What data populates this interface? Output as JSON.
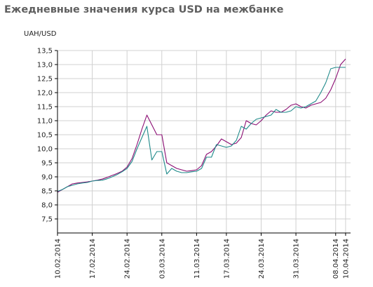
{
  "chart_data": {
    "type": "line",
    "title": "Ежедневные значения курса USD на межбанке",
    "ylabel": "UAH/USD",
    "xlabel": "",
    "ylim": [
      7.0,
      13.5
    ],
    "yticks": [
      "7,5",
      "8,0",
      "8,5",
      "9,0",
      "9,5",
      "10,0",
      "10,5",
      "11,0",
      "11,5",
      "12,0",
      "12,5",
      "13,0",
      "13,5"
    ],
    "x_tick_labels": [
      "10.02.2014",
      "17.02.2014",
      "24.02.2014",
      "03.03.2014",
      "11.03.2014",
      "17.03.2014",
      "24.03.2014",
      "31.03.2014",
      "08.04.2014",
      "10.04.2014"
    ],
    "x_tick_positions": [
      0,
      7,
      14,
      21,
      28,
      34,
      41,
      48,
      56,
      58
    ],
    "x_range": [
      0,
      59
    ],
    "grid": true,
    "colors": {
      "series_1": "#8b0d73",
      "series_2": "#1f8a8a",
      "grid": "#d0d0d0",
      "axis": "#000000"
    },
    "series": [
      {
        "x": [
          0,
          1,
          2,
          3,
          4,
          5,
          6,
          7,
          8,
          9,
          10,
          11,
          12,
          13,
          14,
          15,
          16,
          17,
          18,
          19,
          20,
          21,
          22,
          23,
          24,
          25,
          26,
          27,
          28,
          29,
          30,
          31,
          32,
          33,
          34,
          35,
          36,
          37,
          38,
          39,
          40,
          41,
          42,
          43,
          44,
          45,
          46,
          47,
          48,
          49,
          50,
          51,
          52,
          53,
          54,
          55,
          56,
          57,
          58
        ],
        "values": [
          8.45,
          8.55,
          8.65,
          8.75,
          8.78,
          8.8,
          8.82,
          8.85,
          8.88,
          8.92,
          8.98,
          9.05,
          9.12,
          9.2,
          9.35,
          9.65,
          10.15,
          10.7,
          11.2,
          10.85,
          10.5,
          10.5,
          9.5,
          9.4,
          9.3,
          9.25,
          9.2,
          9.22,
          9.25,
          9.4,
          9.8,
          9.9,
          10.1,
          10.35,
          10.25,
          10.15,
          10.2,
          10.4,
          11.0,
          10.9,
          10.85,
          11.0,
          11.2,
          11.35,
          11.3,
          11.3,
          11.4,
          11.55,
          11.6,
          11.5,
          11.45,
          11.55,
          11.6,
          11.65,
          11.8,
          12.1,
          12.5,
          13.0,
          13.2
        ]
      },
      {
        "x": [
          0,
          1,
          2,
          3,
          4,
          5,
          6,
          7,
          8,
          9,
          10,
          11,
          12,
          13,
          14,
          15,
          16,
          17,
          18,
          19,
          20,
          21,
          22,
          23,
          24,
          25,
          26,
          27,
          28,
          29,
          30,
          31,
          32,
          33,
          34,
          35,
          36,
          37,
          38,
          39,
          40,
          41,
          42,
          43,
          44,
          45,
          46,
          47,
          48,
          49,
          50,
          51,
          52,
          53,
          54,
          55,
          56,
          57,
          58
        ],
        "values": [
          8.48,
          8.55,
          8.65,
          8.7,
          8.75,
          8.78,
          8.8,
          8.85,
          8.87,
          8.88,
          8.93,
          9.0,
          9.08,
          9.18,
          9.3,
          9.55,
          10.0,
          10.4,
          10.8,
          9.6,
          9.9,
          9.9,
          9.1,
          9.3,
          9.2,
          9.15,
          9.15,
          9.18,
          9.2,
          9.3,
          9.7,
          9.7,
          10.15,
          10.1,
          10.05,
          10.1,
          10.3,
          10.8,
          10.7,
          10.9,
          11.05,
          11.1,
          11.15,
          11.2,
          11.4,
          11.3,
          11.3,
          11.35,
          11.5,
          11.45,
          11.5,
          11.6,
          11.7,
          12.0,
          12.35,
          12.85,
          12.9,
          12.9,
          12.9
        ]
      }
    ]
  }
}
